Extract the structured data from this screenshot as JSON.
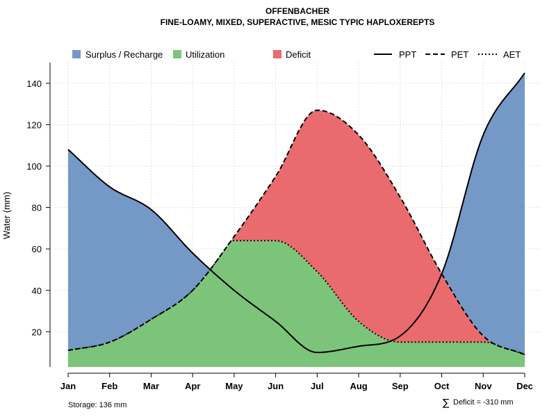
{
  "chart_data": {
    "type": "area",
    "title": "OFFENBACHER",
    "subtitle": "FINE-LOAMY, MIXED, SUPERACTIVE, MESIC TYPIC HAPLOXEREPTS",
    "ylabel": "Water (mm)",
    "xlabel": "",
    "categories": [
      "Jan",
      "Feb",
      "Mar",
      "Apr",
      "May",
      "Jun",
      "Jul",
      "Aug",
      "Sep",
      "Oct",
      "Nov",
      "Dec"
    ],
    "ylim": [
      3,
      150
    ],
    "yticks": [
      "20",
      "40",
      "60",
      "80",
      "100",
      "120",
      "140"
    ],
    "grid": true,
    "series": [
      {
        "name": "PPT",
        "style": "solid",
        "values": [
          108,
          90,
          79,
          58,
          40,
          25,
          10,
          13,
          18,
          48,
          115,
          145
        ]
      },
      {
        "name": "PET",
        "style": "dashed",
        "values": [
          11,
          15,
          26,
          40,
          66,
          95,
          127,
          115,
          85,
          48,
          18,
          9
        ]
      },
      {
        "name": "AET",
        "style": "dotted",
        "values": [
          11,
          15,
          26,
          40,
          64,
          64,
          49,
          25,
          15,
          15,
          15,
          9
        ]
      }
    ],
    "legend": {
      "position": "top",
      "areas": [
        {
          "label": "Surplus / Recharge",
          "color": "#7499c7"
        },
        {
          "label": "Utilization",
          "color": "#7cc47a"
        },
        {
          "label": "Deficit",
          "color": "#ea6b6d"
        }
      ],
      "lines": [
        {
          "label": "PPT",
          "style": "solid"
        },
        {
          "label": "PET",
          "style": "dashed"
        },
        {
          "label": "AET",
          "style": "dotted"
        }
      ]
    },
    "annotations": {
      "storage": "Storage: 136 mm",
      "deficit_symbol": "∑",
      "deficit": "Deficit = -310 mm"
    }
  }
}
